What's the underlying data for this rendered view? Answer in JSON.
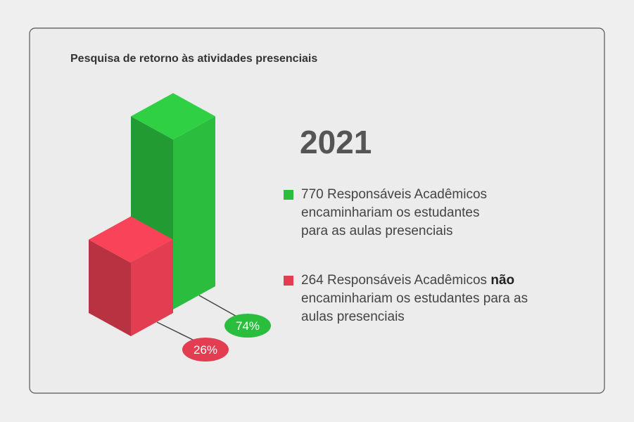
{
  "chart_data": {
    "type": "bar",
    "title": "Pesquisa de retorno às atividades presenciais",
    "subtitle": "2021",
    "values": [
      74,
      26
    ],
    "value_labels": [
      "74%",
      "26%"
    ],
    "colors": [
      "#2bbd3e",
      "#e23d50"
    ],
    "legend": [
      {
        "count": 770,
        "text": "Responsáveis Acadêmicos encaminhariam os estudantes para as aulas presenciais"
      },
      {
        "count": 264,
        "text": "Responsáveis Acadêmicos",
        "emphasis": "não",
        "text_after": "encaminhariam os estudantes para as aulas presenciais"
      }
    ]
  }
}
